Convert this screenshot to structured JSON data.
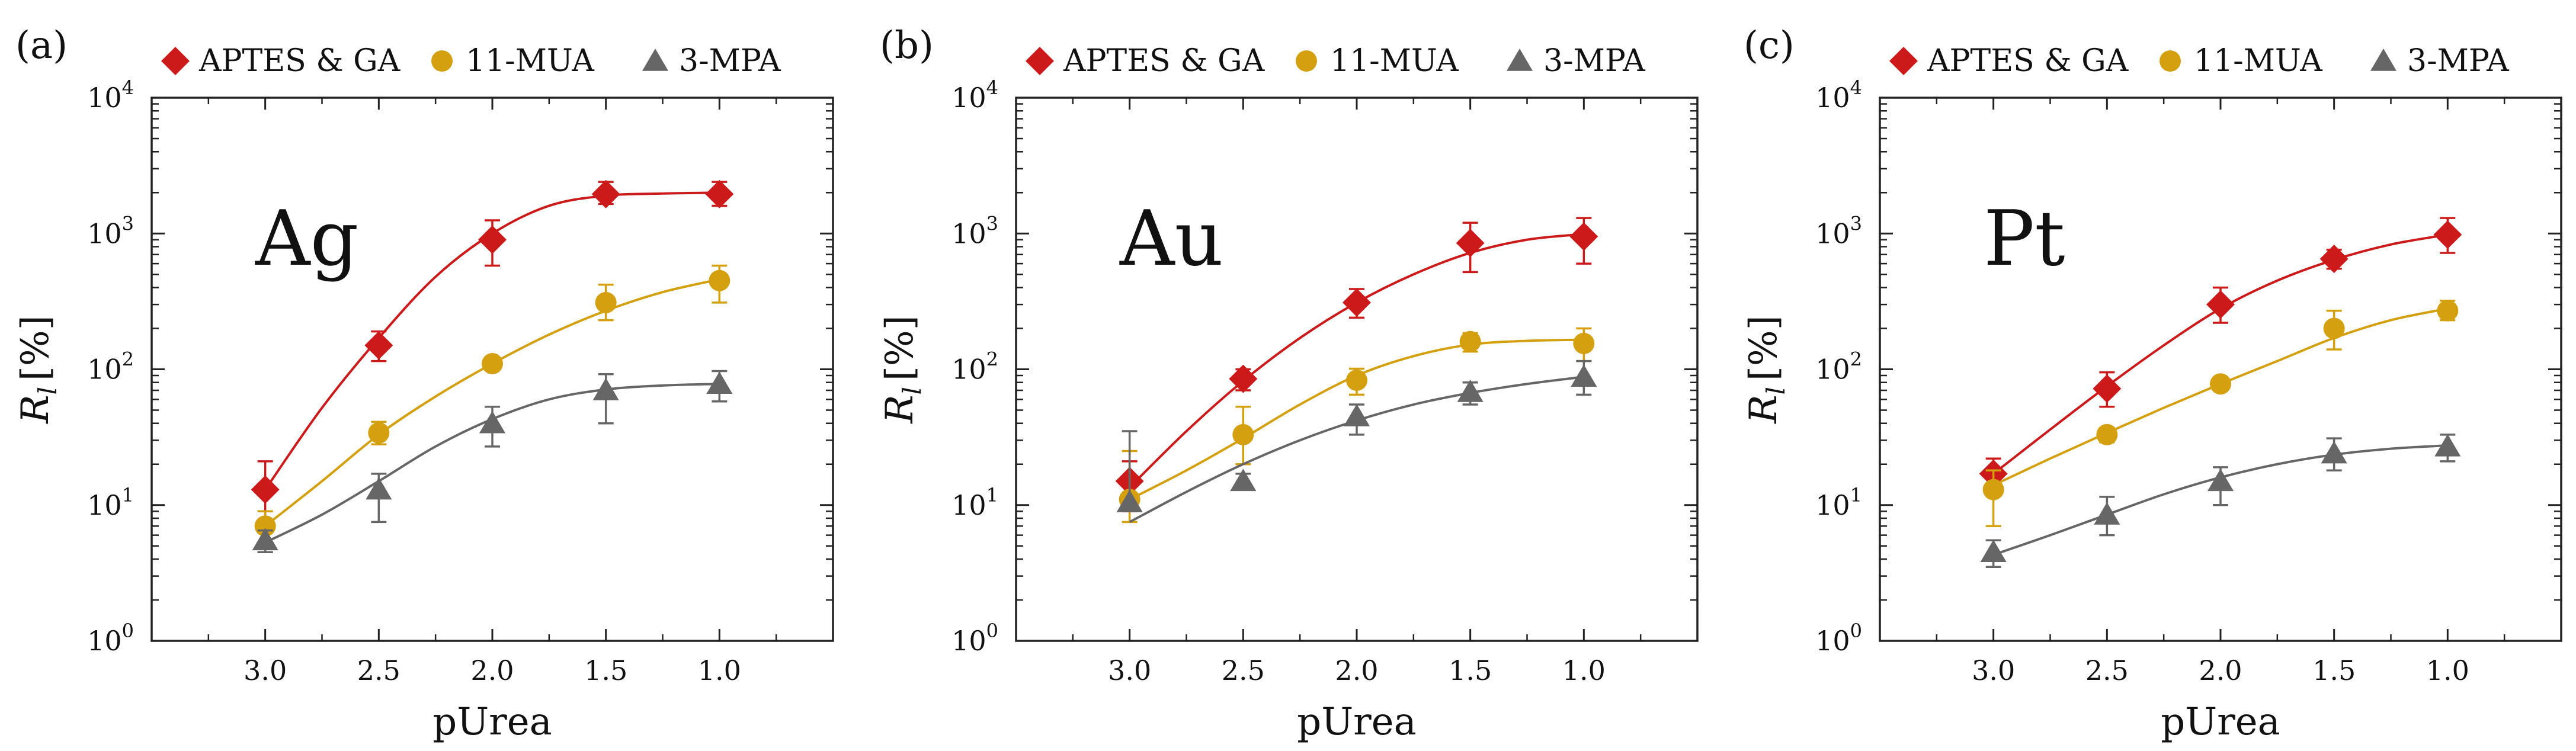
{
  "chart_data": [
    {
      "type": "line",
      "panel": "(a)",
      "metal": "Ag",
      "xlabel": "pUrea",
      "ylabel_main": "R",
      "ylabel_sub": "l",
      "ylabel_unit": "[%]",
      "x_reversed": true,
      "xlim": [
        3.5,
        0.5
      ],
      "ylim": [
        1,
        10000
      ],
      "yscale": "log",
      "x_ticks": [
        3.0,
        2.5,
        2.0,
        1.5,
        1.0
      ],
      "x_tick_labels": [
        "3.0",
        "2.5",
        "2.0",
        "1.5",
        "1.0"
      ],
      "y_ticks": [
        1,
        10,
        100,
        1000,
        10000
      ],
      "y_tick_base": [
        "10",
        "10",
        "10",
        "10",
        "10"
      ],
      "y_tick_exp": [
        "0",
        "1",
        "2",
        "3",
        "4"
      ],
      "legend_position": "top",
      "series": [
        {
          "name": "APTES & GA",
          "marker": "diamond",
          "color": "#cc1a1a",
          "x": [
            3.0,
            2.5,
            2.0,
            1.5,
            1.0
          ],
          "values": [
            13,
            150,
            900,
            1950,
            1950
          ],
          "err_low": [
            4.5,
            115,
            580,
            1650,
            1600
          ],
          "err_high": [
            21,
            190,
            1250,
            2400,
            2400
          ],
          "fit_x": [
            3.0,
            2.75,
            2.5,
            2.25,
            2.0,
            1.75,
            1.5,
            1.25,
            1.0
          ],
          "fit_y": [
            13,
            52,
            170,
            480,
            1000,
            1600,
            1900,
            1970,
            2000
          ]
        },
        {
          "name": "11-MUA",
          "marker": "circle",
          "color": "#d4a00f",
          "x": [
            3.0,
            2.5,
            2.0,
            1.5,
            1.0
          ],
          "values": [
            7,
            34,
            110,
            310,
            450
          ],
          "err_low": [
            5,
            28,
            100,
            230,
            310
          ],
          "err_high": [
            9,
            41,
            120,
            420,
            580
          ],
          "fit_x": [
            3.0,
            2.75,
            2.5,
            2.25,
            2.0,
            1.75,
            1.5,
            1.25,
            1.0
          ],
          "fit_y": [
            7,
            15,
            33,
            63,
            110,
            180,
            270,
            370,
            460
          ]
        },
        {
          "name": "3-MPA",
          "marker": "triangle",
          "color": "#666666",
          "x": [
            3.0,
            2.5,
            2.0,
            1.5,
            1.0
          ],
          "values": [
            5.5,
            13,
            40,
            70,
            78
          ],
          "err_low": [
            4.5,
            7.5,
            27,
            40,
            58
          ],
          "err_high": [
            6.5,
            17,
            53,
            92,
            97
          ],
          "fit_x": [
            3.0,
            2.75,
            2.5,
            2.25,
            2.0,
            1.75,
            1.5,
            1.25,
            1.0
          ],
          "fit_y": [
            5.3,
            8.5,
            15,
            27,
            43,
            60,
            71,
            76,
            78
          ]
        }
      ]
    },
    {
      "type": "line",
      "panel": "(b)",
      "metal": "Au",
      "xlabel": "pUrea",
      "ylabel_main": "R",
      "ylabel_sub": "l",
      "ylabel_unit": "[%]",
      "x_reversed": true,
      "xlim": [
        3.5,
        0.5
      ],
      "ylim": [
        1,
        10000
      ],
      "yscale": "log",
      "x_ticks": [
        3.0,
        2.5,
        2.0,
        1.5,
        1.0
      ],
      "x_tick_labels": [
        "3.0",
        "2.5",
        "2.0",
        "1.5",
        "1.0"
      ],
      "y_ticks": [
        1,
        10,
        100,
        1000,
        10000
      ],
      "y_tick_base": [
        "10",
        "10",
        "10",
        "10",
        "10"
      ],
      "y_tick_exp": [
        "0",
        "1",
        "2",
        "3",
        "4"
      ],
      "legend_position": "top",
      "series": [
        {
          "name": "APTES & GA",
          "marker": "diamond",
          "color": "#cc1a1a",
          "x": [
            3.0,
            2.5,
            2.0,
            1.5,
            1.0
          ],
          "values": [
            15,
            85,
            310,
            850,
            950
          ],
          "err_low": [
            9,
            70,
            240,
            520,
            600
          ],
          "err_high": [
            21,
            100,
            390,
            1200,
            1300
          ],
          "fit_x": [
            3.0,
            2.75,
            2.5,
            2.25,
            2.0,
            1.75,
            1.5,
            1.25,
            1.0
          ],
          "fit_y": [
            13.5,
            35,
            82,
            170,
            310,
            500,
            720,
            900,
            990
          ]
        },
        {
          "name": "11-MUA",
          "marker": "circle",
          "color": "#d4a00f",
          "x": [
            3.0,
            2.5,
            2.0,
            1.5,
            1.0
          ],
          "values": [
            11,
            33,
            83,
            160,
            155
          ],
          "err_low": [
            7.5,
            20,
            65,
            135,
            115
          ],
          "err_high": [
            25,
            53,
            101,
            185,
            200
          ],
          "fit_x": [
            3.0,
            2.75,
            2.5,
            2.25,
            2.0,
            1.75,
            1.5,
            1.25,
            1.0
          ],
          "fit_y": [
            11,
            18,
            31,
            55,
            90,
            125,
            152,
            162,
            165
          ]
        },
        {
          "name": "3-MPA",
          "marker": "triangle",
          "color": "#666666",
          "x": [
            3.0,
            2.5,
            2.0,
            1.5,
            1.0
          ],
          "values": [
            10.5,
            15,
            45,
            68,
            88
          ],
          "err_low": [
            10,
            14,
            33,
            55,
            65
          ],
          "err_high": [
            35,
            17,
            55,
            80,
            115
          ],
          "fit_x": [
            3.0,
            2.75,
            2.5,
            2.25,
            2.0,
            1.75,
            1.5,
            1.25,
            1.0
          ],
          "fit_y": [
            7.5,
            12.5,
            20,
            30,
            42,
            55,
            67,
            78,
            88
          ]
        }
      ]
    },
    {
      "type": "line",
      "panel": "(c)",
      "metal": "Pt",
      "xlabel": "pUrea",
      "ylabel_main": "R",
      "ylabel_sub": "l",
      "ylabel_unit": "[%]",
      "x_reversed": true,
      "xlim": [
        3.5,
        0.5
      ],
      "ylim": [
        1,
        10000
      ],
      "yscale": "log",
      "x_ticks": [
        3.0,
        2.5,
        2.0,
        1.5,
        1.0
      ],
      "x_tick_labels": [
        "3.0",
        "2.5",
        "2.0",
        "1.5",
        "1.0"
      ],
      "y_ticks": [
        1,
        10,
        100,
        1000,
        10000
      ],
      "y_tick_base": [
        "10",
        "10",
        "10",
        "10",
        "10"
      ],
      "y_tick_exp": [
        "0",
        "1",
        "2",
        "3",
        "4"
      ],
      "legend_position": "top",
      "series": [
        {
          "name": "APTES & GA",
          "marker": "diamond",
          "color": "#cc1a1a",
          "x": [
            3.0,
            2.5,
            2.0,
            1.5,
            1.0
          ],
          "values": [
            17,
            72,
            300,
            650,
            980
          ],
          "err_low": [
            13,
            53,
            220,
            550,
            720
          ],
          "err_high": [
            22,
            95,
            400,
            760,
            1300
          ],
          "fit_x": [
            3.0,
            2.75,
            2.5,
            2.25,
            2.0,
            1.75,
            1.5,
            1.25,
            1.0
          ],
          "fit_y": [
            17,
            36,
            75,
            150,
            280,
            450,
            640,
            830,
            980
          ]
        },
        {
          "name": "11-MUA",
          "marker": "circle",
          "color": "#d4a00f",
          "x": [
            3.0,
            2.5,
            2.0,
            1.5,
            1.0
          ],
          "values": [
            13,
            33,
            78,
            200,
            270
          ],
          "err_low": [
            7,
            29,
            70,
            140,
            230
          ],
          "err_high": [
            18,
            37,
            86,
            270,
            320
          ],
          "fit_x": [
            3.0,
            2.75,
            2.5,
            2.25,
            2.0,
            1.75,
            1.5,
            1.25,
            1.0
          ],
          "fit_y": [
            14,
            22,
            34,
            52,
            78,
            115,
            170,
            230,
            280
          ]
        },
        {
          "name": "3-MPA",
          "marker": "triangle",
          "color": "#666666",
          "x": [
            3.0,
            2.5,
            2.0,
            1.5,
            1.0
          ],
          "values": [
            4.5,
            8.5,
            15,
            24,
            27
          ],
          "err_low": [
            3.5,
            6,
            10,
            18,
            21
          ],
          "err_high": [
            5.5,
            11.5,
            19,
            31,
            33
          ],
          "fit_x": [
            3.0,
            2.75,
            2.5,
            2.25,
            2.0,
            1.75,
            1.5,
            1.25,
            1.0
          ],
          "fit_y": [
            4.3,
            6,
            8.5,
            12,
            16,
            20,
            23.5,
            26,
            27.5
          ]
        }
      ]
    }
  ]
}
